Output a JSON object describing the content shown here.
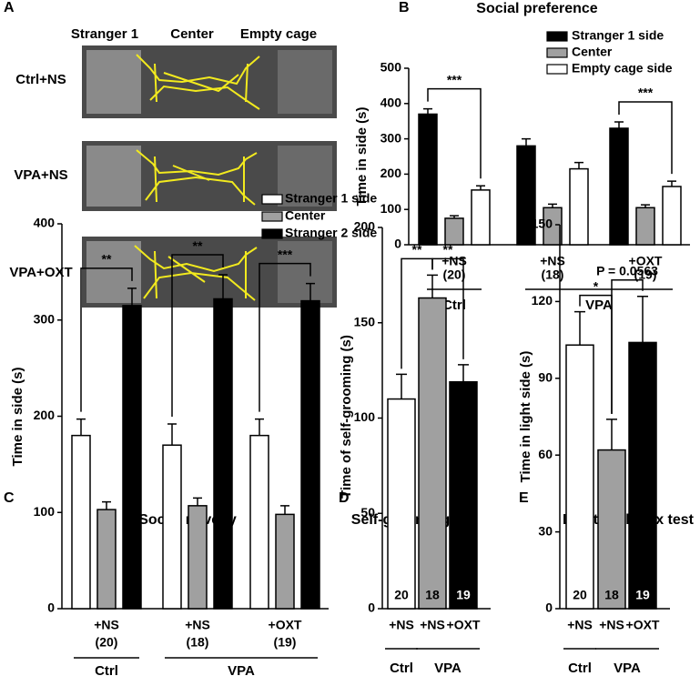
{
  "panel_a": {
    "label": "A",
    "columns": [
      "Stranger 1",
      "Center",
      "Empty cage"
    ],
    "rows": [
      "Ctrl+NS",
      "VPA+NS",
      "VPA+OXT"
    ]
  },
  "chart_data": [
    {
      "type": "grouped_bar",
      "panel": "B",
      "title": "Social preference",
      "y_label": "Time in side (s)",
      "categories": [
        "+NS",
        "+NS",
        "+OXT"
      ],
      "n_labels": [
        "(20)",
        "(18)",
        "(19)"
      ],
      "groups": [
        {
          "label": "Ctrl",
          "size": 1
        },
        {
          "label": "VPA",
          "size": 2
        }
      ],
      "series": [
        {
          "name": "Stranger 1 side",
          "color": "#000000",
          "values": [
            370,
            280,
            330
          ],
          "errors": [
            15,
            20,
            18
          ]
        },
        {
          "name": "Center",
          "color": "#a0a0a0",
          "values": [
            75,
            105,
            105
          ],
          "errors": [
            7,
            10,
            8
          ]
        },
        {
          "name": "Empty cage side",
          "color": "#ffffff",
          "values": [
            155,
            215,
            165
          ],
          "errors": [
            12,
            18,
            15
          ]
        }
      ],
      "ylim": [
        0,
        500
      ],
      "yticks": [
        0,
        100,
        200,
        300,
        400,
        500
      ],
      "annotations": [
        {
          "text": "***",
          "category": 0,
          "series": [
            0,
            2
          ]
        },
        {
          "text": "***",
          "category": 2,
          "series": [
            0,
            2
          ]
        }
      ]
    },
    {
      "type": "grouped_bar",
      "panel": "C",
      "title": "Social novelty",
      "y_label": "Time in side (s)",
      "categories": [
        "+NS",
        "+NS",
        "+OXT"
      ],
      "n_labels": [
        "(20)",
        "(18)",
        "(19)"
      ],
      "groups": [
        {
          "label": "Ctrl",
          "size": 1
        },
        {
          "label": "VPA",
          "size": 2
        }
      ],
      "series": [
        {
          "name": "Stranger 1 side",
          "color": "#ffffff",
          "values": [
            180,
            170,
            180
          ],
          "errors": [
            17,
            22,
            17
          ]
        },
        {
          "name": "Center",
          "color": "#a0a0a0",
          "values": [
            103,
            107,
            98
          ],
          "errors": [
            8,
            8,
            9
          ]
        },
        {
          "name": "Stranger 2 side",
          "color": "#000000",
          "values": [
            315,
            322,
            320
          ],
          "errors": [
            18,
            25,
            18
          ]
        }
      ],
      "ylim": [
        0,
        400
      ],
      "yticks": [
        0,
        100,
        200,
        300,
        400
      ],
      "annotations": [
        {
          "text": "**",
          "category": 0,
          "series": [
            0,
            2
          ]
        },
        {
          "text": "**",
          "category": 1,
          "series": [
            0,
            2
          ]
        },
        {
          "text": "***",
          "category": 2,
          "series": [
            0,
            2
          ]
        }
      ]
    },
    {
      "type": "bar",
      "panel": "D",
      "title": "Self-grooming",
      "y_label": "Time of self-grooming (s)",
      "categories": [
        "+NS",
        "+NS",
        "+OXT"
      ],
      "n_labels": [
        "20",
        "18",
        "19"
      ],
      "groups": [
        {
          "label": "Ctrl",
          "size": 1
        },
        {
          "label": "VPA",
          "size": 2
        }
      ],
      "values": [
        110,
        163,
        119
      ],
      "errors": [
        13,
        12,
        9
      ],
      "colors": [
        "#ffffff",
        "#a0a0a0",
        "#000000"
      ],
      "ylim": [
        0,
        200
      ],
      "yticks": [
        0,
        50,
        100,
        150,
        200
      ],
      "annotations": [
        {
          "text": "**",
          "categories": [
            0,
            1
          ]
        },
        {
          "text": "**",
          "categories": [
            1,
            2
          ]
        }
      ]
    },
    {
      "type": "bar",
      "panel": "E",
      "title": "Light-dark box test",
      "y_label": "Time in light side (s)",
      "categories": [
        "+NS",
        "+NS",
        "+OXT"
      ],
      "n_labels": [
        "20",
        "18",
        "19"
      ],
      "groups": [
        {
          "label": "Ctrl",
          "size": 1
        },
        {
          "label": "VPA",
          "size": 2
        }
      ],
      "values": [
        103,
        62,
        104
      ],
      "errors": [
        13,
        12,
        18
      ],
      "colors": [
        "#ffffff",
        "#a0a0a0",
        "#000000"
      ],
      "ylim": [
        0,
        150
      ],
      "yticks": [
        0,
        30,
        60,
        90,
        120,
        150
      ],
      "annotations": [
        {
          "text": "*",
          "categories": [
            0,
            1
          ]
        },
        {
          "text": "P = 0.0563",
          "categories": [
            1,
            2
          ]
        }
      ]
    }
  ]
}
